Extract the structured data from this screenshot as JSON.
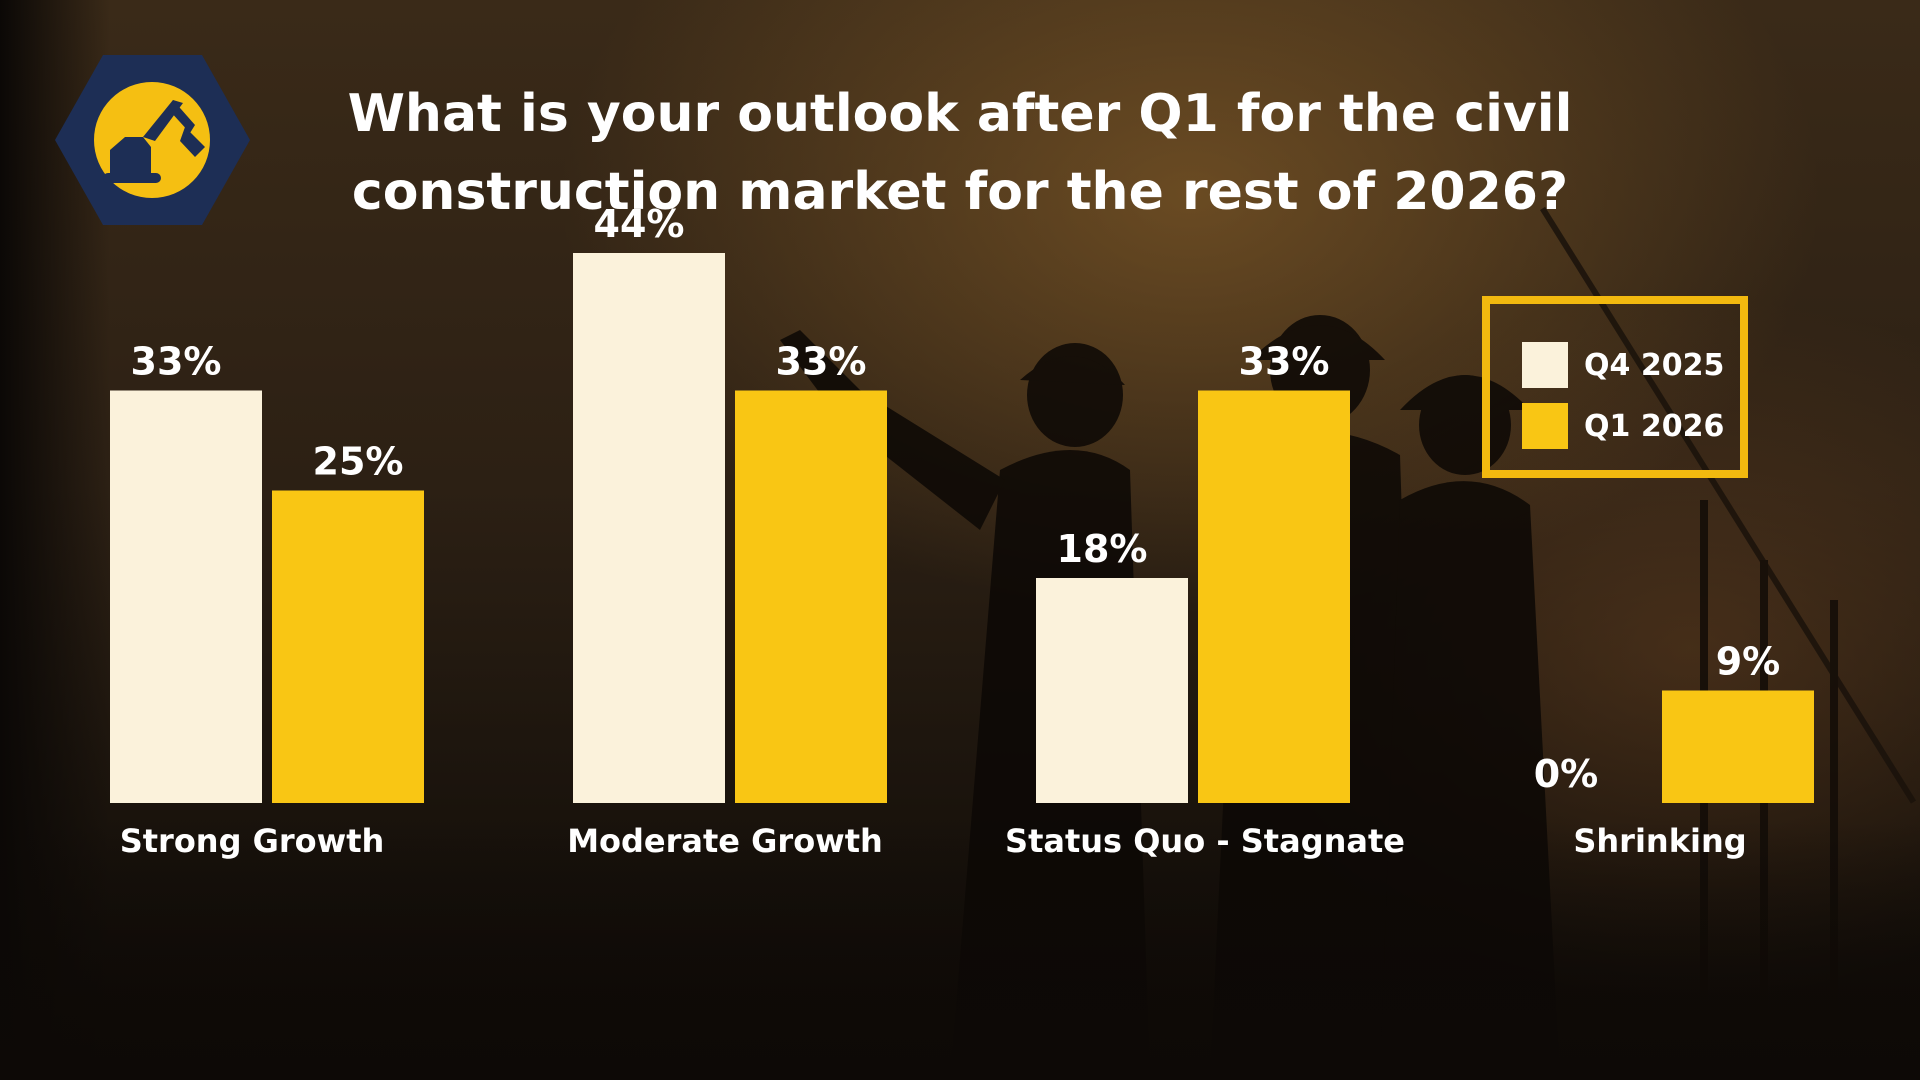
{
  "title": "What is your outlook after Q1 for the civil construction market for the rest of 2026?",
  "logo": {
    "icon": "excavator-icon",
    "colors": {
      "hexagon": "#1d2e55",
      "circle": "#f5bf12",
      "figure": "#1d2e55"
    }
  },
  "colors": {
    "q4_2025": "#fbf2db",
    "q1_2026": "#f9c614",
    "text": "#ffffff",
    "legend_border": "#f2b90f"
  },
  "legend": {
    "items": [
      {
        "label": "Q4 2025",
        "color": "#fbf2db"
      },
      {
        "label": "Q1 2026",
        "color": "#f9c614"
      }
    ],
    "placement": "top-right"
  },
  "chart_data": {
    "type": "bar",
    "title": "What is your outlook after Q1 for the civil construction market for the rest of 2026?",
    "categories": [
      "Strong Growth",
      "Moderate Growth",
      "Status Quo - Stagnate",
      "Shrinking"
    ],
    "series": [
      {
        "name": "Q4 2025",
        "values": [
          33,
          44,
          18,
          0
        ],
        "labels": [
          "33%",
          "44%",
          "18%",
          "0%"
        ],
        "color": "#fbf2db"
      },
      {
        "name": "Q1 2026",
        "values": [
          25,
          33,
          33,
          9
        ],
        "labels": [
          "25%",
          "33%",
          "33%",
          "9%"
        ],
        "color": "#f9c614"
      }
    ],
    "unit": "%",
    "ylim": [
      0,
      50
    ],
    "grid": false,
    "legend": "top-right"
  }
}
